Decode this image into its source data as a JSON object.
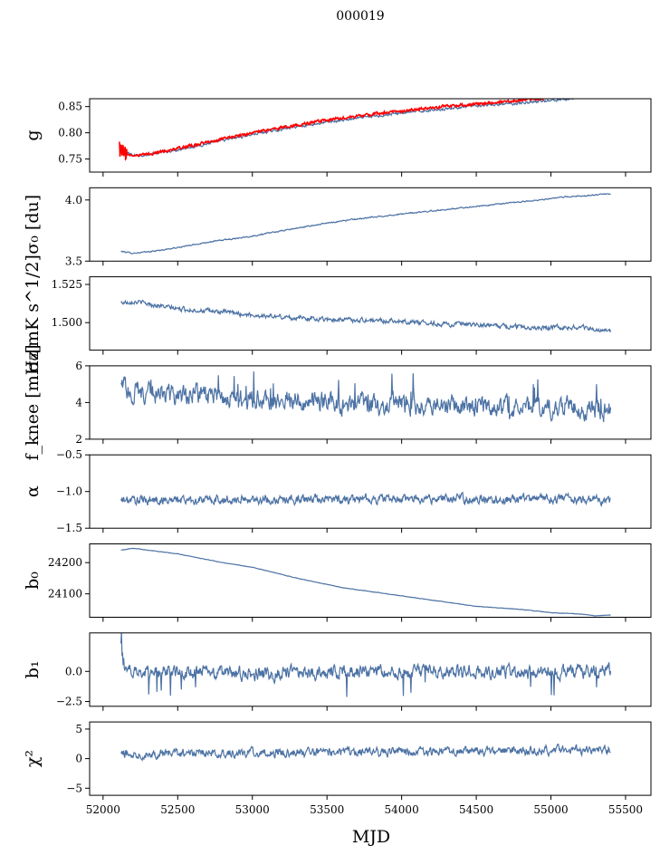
{
  "title": "000019",
  "xlabel": "MJD",
  "x_ticks": [
    "52000",
    "52500",
    "53000",
    "53500",
    "54000",
    "54500",
    "55000",
    "55500"
  ],
  "x_tick_values": [
    52000,
    52500,
    53000,
    53500,
    54000,
    54500,
    55000,
    55500
  ],
  "colors": {
    "series": "#4c72a4",
    "overlay": "#ff0000"
  },
  "chart_data": [
    {
      "type": "line",
      "ylabel": "g",
      "xlim": [
        51910,
        55670
      ],
      "ylim": [
        0.725,
        0.865
      ],
      "yticks": [
        0.75,
        0.8,
        0.85
      ],
      "ytick_labels": [
        "0.75",
        "0.80",
        "0.85"
      ],
      "series": [
        {
          "color": "#4c72a4",
          "noise": 0.002,
          "points": [
            [
              52110,
              0.77
            ],
            [
              52130,
              0.765
            ],
            [
              52200,
              0.757
            ],
            [
              52300,
              0.758
            ],
            [
              52500,
              0.768
            ],
            [
              52750,
              0.782
            ],
            [
              53000,
              0.797
            ],
            [
              53300,
              0.812
            ],
            [
              53600,
              0.824
            ],
            [
              54000,
              0.838
            ],
            [
              54400,
              0.849
            ],
            [
              54800,
              0.857
            ],
            [
              55000,
              0.862
            ],
            [
              55150,
              0.865
            ]
          ]
        },
        {
          "color": "#ff0000",
          "noise": 0.002,
          "points": [
            [
              52110,
              0.768
            ],
            [
              52130,
              0.77
            ],
            [
              52150,
              0.76
            ],
            [
              52200,
              0.756
            ],
            [
              52300,
              0.759
            ],
            [
              52500,
              0.77
            ],
            [
              52750,
              0.785
            ],
            [
              53000,
              0.8
            ],
            [
              53300,
              0.815
            ],
            [
              53600,
              0.828
            ],
            [
              54000,
              0.842
            ],
            [
              54400,
              0.853
            ],
            [
              54800,
              0.862
            ],
            [
              54950,
              0.866
            ]
          ]
        }
      ]
    },
    {
      "type": "line",
      "ylabel": "σ₀ [du]",
      "xlim": [
        51910,
        55670
      ],
      "ylim": [
        3.5,
        4.1
      ],
      "yticks": [
        3.5,
        4.0
      ],
      "ytick_labels": [
        "3.5",
        "4.0"
      ],
      "series": [
        {
          "color": "#4c72a4",
          "noise": 0.004,
          "points": [
            [
              52120,
              3.58
            ],
            [
              52200,
              3.565
            ],
            [
              52300,
              3.575
            ],
            [
              52500,
              3.61
            ],
            [
              52700,
              3.655
            ],
            [
              53000,
              3.705
            ],
            [
              53300,
              3.77
            ],
            [
              53600,
              3.83
            ],
            [
              54000,
              3.885
            ],
            [
              54400,
              3.935
            ],
            [
              54800,
              3.985
            ],
            [
              55100,
              4.025
            ],
            [
              55400,
              4.05
            ]
          ]
        }
      ]
    },
    {
      "type": "line",
      "ylabel": "σ₀[mK s^1/2]",
      "xlim": [
        51910,
        55670
      ],
      "ylim": [
        1.482,
        1.53
      ],
      "yticks": [
        1.5,
        1.525
      ],
      "ytick_labels": [
        "1.500",
        "1.525"
      ],
      "series": [
        {
          "color": "#4c72a4",
          "noise": 0.0012,
          "points": [
            [
              52120,
              1.513
            ],
            [
              52200,
              1.514
            ],
            [
              52500,
              1.509
            ],
            [
              52800,
              1.507
            ],
            [
              53000,
              1.505
            ],
            [
              53300,
              1.503
            ],
            [
              53600,
              1.502
            ],
            [
              54000,
              1.501
            ],
            [
              54300,
              1.499
            ],
            [
              54600,
              1.498
            ],
            [
              54900,
              1.497
            ],
            [
              55200,
              1.497
            ],
            [
              55400,
              1.494
            ]
          ]
        }
      ]
    },
    {
      "type": "line",
      "ylabel": "f_knee [mHz]",
      "xlim": [
        51910,
        55670
      ],
      "ylim": [
        2,
        6
      ],
      "yticks": [
        2,
        4,
        6
      ],
      "ytick_labels": [
        "2",
        "4",
        "6"
      ],
      "series": [
        {
          "color": "#4c72a4",
          "noise": 0.45,
          "points": [
            [
              52120,
              4.9
            ],
            [
              52200,
              4.6
            ],
            [
              52500,
              4.4
            ],
            [
              53000,
              4.2
            ],
            [
              53500,
              4.0
            ],
            [
              54000,
              3.9
            ],
            [
              54500,
              3.8
            ],
            [
              55000,
              3.7
            ],
            [
              55400,
              3.6
            ]
          ]
        }
      ]
    },
    {
      "type": "line",
      "ylabel": "α",
      "xlim": [
        51910,
        55670
      ],
      "ylim": [
        -1.5,
        -0.5
      ],
      "yticks": [
        -1.5,
        -1.0,
        -0.5
      ],
      "ytick_labels": [
        "−1.5",
        "−1.0",
        "−0.5"
      ],
      "series": [
        {
          "color": "#4c72a4",
          "noise": 0.05,
          "points": [
            [
              52120,
              -1.12
            ],
            [
              53000,
              -1.11
            ],
            [
              54000,
              -1.1
            ],
            [
              55000,
              -1.1
            ],
            [
              55400,
              -1.12
            ]
          ]
        }
      ]
    },
    {
      "type": "line",
      "ylabel": "b₀",
      "xlim": [
        51910,
        55670
      ],
      "ylim": [
        24025,
        24260
      ],
      "yticks": [
        24100,
        24200
      ],
      "ytick_labels": [
        "24100",
        "24200"
      ],
      "series": [
        {
          "color": "#4c72a4",
          "noise": 0.5,
          "points": [
            [
              52120,
              24240
            ],
            [
              52200,
              24246
            ],
            [
              52500,
              24228
            ],
            [
              52800,
              24200
            ],
            [
              53000,
              24185
            ],
            [
              53300,
              24150
            ],
            [
              53600,
              24120
            ],
            [
              53900,
              24100
            ],
            [
              54200,
              24080
            ],
            [
              54500,
              24060
            ],
            [
              54800,
              24050
            ],
            [
              55000,
              24040
            ],
            [
              55200,
              24035
            ],
            [
              55300,
              24030
            ],
            [
              55400,
              24032
            ]
          ]
        }
      ]
    },
    {
      "type": "line",
      "ylabel": "b₁",
      "xlim": [
        51910,
        55670
      ],
      "ylim": [
        -2.9,
        3.2
      ],
      "yticks": [
        -2.5,
        0.0
      ],
      "ytick_labels": [
        "−2.5",
        "0.0"
      ],
      "series": [
        {
          "color": "#4c72a4",
          "noise": 0.45,
          "points": [
            [
              52120,
              2.7
            ],
            [
              52140,
              0.8
            ],
            [
              52200,
              0.0
            ],
            [
              53000,
              -0.2
            ],
            [
              54000,
              0.0
            ],
            [
              55000,
              -0.1
            ],
            [
              55400,
              0.0
            ]
          ]
        }
      ]
    },
    {
      "type": "line",
      "ylabel": "χ²",
      "xlim": [
        51910,
        55670
      ],
      "ylim": [
        -6.2,
        6.2
      ],
      "yticks": [
        -5,
        0,
        5
      ],
      "ytick_labels": [
        "−5",
        "0",
        "5"
      ],
      "series": [
        {
          "color": "#4c72a4",
          "noise": 0.6,
          "points": [
            [
              52120,
              0.8
            ],
            [
              53000,
              1.0
            ],
            [
              54000,
              1.2
            ],
            [
              55000,
              1.4
            ],
            [
              55400,
              1.6
            ]
          ]
        }
      ]
    }
  ]
}
